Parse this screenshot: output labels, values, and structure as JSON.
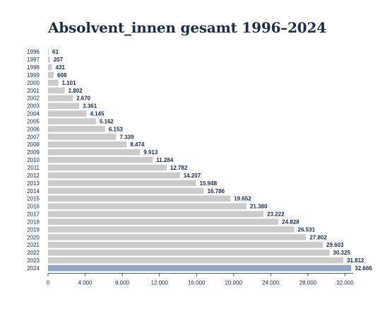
{
  "chart_data": {
    "type": "bar",
    "orientation": "horizontal",
    "title": "Absolvent_innen gesamt 1996–2024",
    "categories": [
      "1996",
      "1997",
      "1998",
      "1999",
      "2000",
      "2001",
      "2002",
      "2003",
      "2004",
      "2005",
      "2006",
      "2007",
      "2008",
      "2009",
      "2010",
      "2011",
      "2012",
      "2013",
      "2014",
      "2015",
      "2016",
      "2017",
      "2018",
      "2019",
      "2020",
      "2021",
      "2022",
      "2023",
      "2024"
    ],
    "values": [
      61,
      207,
      431,
      608,
      1101,
      1802,
      2670,
      3361,
      4145,
      5162,
      6153,
      7339,
      8474,
      9913,
      11284,
      12782,
      14207,
      15948,
      16786,
      19652,
      21380,
      23222,
      24828,
      26531,
      27802,
      29603,
      30325,
      31812,
      32666
    ],
    "value_labels": [
      "61",
      "207",
      "431",
      "608",
      "1.101",
      "1.802",
      "2.670",
      "3.361",
      "4.145",
      "5.162",
      "6.153",
      "7.339",
      "8.474",
      "9.913",
      "11.284",
      "12.782",
      "14.207",
      "15.948",
      "16.786",
      "19.652",
      "21.380",
      "23.222",
      "24.828",
      "26.531",
      "27.802",
      "29.603",
      "30.325",
      "31.812",
      "32.666"
    ],
    "xlim": [
      0,
      32000
    ],
    "x_ticks": [
      0,
      4000,
      8000,
      12000,
      16000,
      20000,
      24000,
      28000,
      32000
    ],
    "x_tick_labels": [
      "0",
      "4.000",
      "8.000",
      "12.000",
      "16.000",
      "20.000",
      "24.000",
      "28.000",
      "32.000"
    ],
    "highlight_category": "2024",
    "colors": {
      "bar": "#cbcbcb",
      "highlight": "#8fa7c4",
      "text": "#1c2d4f",
      "axis": "#1c2d4f"
    },
    "grid": false,
    "legend": "none"
  }
}
